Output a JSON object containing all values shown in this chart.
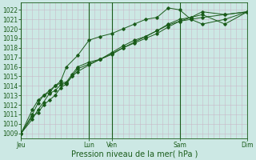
{
  "bg_color": "#cce8e4",
  "line_color": "#1a5c1a",
  "grid_color": "#c8b8c8",
  "xlabel": "Pression niveau de la mer( hPa )",
  "yticks": [
    1009,
    1010,
    1011,
    1012,
    1013,
    1014,
    1015,
    1016,
    1017,
    1018,
    1019,
    1020,
    1021,
    1022
  ],
  "ylim": [
    1008.5,
    1022.8
  ],
  "day_labels": [
    "Jeu",
    "Lun",
    "Ven",
    "Sam",
    "Dim"
  ],
  "day_positions": [
    0,
    72,
    96,
    168,
    240
  ],
  "total_hours": 240,
  "series": [
    [
      1009.0,
      1010.5,
      1011.5,
      1012.3,
      1013.2,
      1013.5,
      1014.1,
      1014.3,
      1015.0,
      1015.5,
      1016.2,
      1016.8,
      1017.3,
      1018.0,
      1018.5,
      1019.0,
      1019.5,
      1020.2,
      1020.8,
      1021.2,
      1021.5,
      1020.5,
      1021.8
    ],
    [
      1009.0,
      1011.0,
      1012.2,
      1013.0,
      1013.3,
      1014.0,
      1014.3,
      1014.4,
      1015.2,
      1016.0,
      1016.5,
      1016.8,
      1017.5,
      1018.2,
      1018.8,
      1019.2,
      1019.8,
      1020.5,
      1021.0,
      1021.2,
      1021.8,
      1021.5,
      1021.8
    ],
    [
      1009.0,
      1011.5,
      1012.5,
      1013.0,
      1013.5,
      1014.0,
      1014.5,
      1016.0,
      1017.2,
      1018.8,
      1019.2,
      1019.5,
      1020.0,
      1020.5,
      1021.0,
      1021.2,
      1022.2,
      1022.0,
      1021.0,
      1020.5,
      1021.0,
      1021.8
    ],
    [
      1009.0,
      1010.8,
      1011.2,
      1012.0,
      1012.5,
      1013.0,
      1013.8,
      1014.2,
      1015.0,
      1015.8,
      1016.3,
      1016.8,
      1017.4,
      1018.0,
      1018.6,
      1019.2,
      1019.8,
      1020.4,
      1020.8,
      1021.0,
      1021.2,
      1021.5,
      1021.8
    ]
  ],
  "series_x": [
    [
      0,
      12,
      18,
      24,
      30,
      36,
      42,
      48,
      54,
      60,
      72,
      84,
      96,
      108,
      120,
      132,
      144,
      156,
      168,
      180,
      192,
      216,
      240
    ],
    [
      0,
      12,
      18,
      24,
      30,
      36,
      42,
      48,
      54,
      60,
      72,
      84,
      96,
      108,
      120,
      132,
      144,
      156,
      168,
      180,
      192,
      216,
      240
    ],
    [
      0,
      12,
      18,
      24,
      30,
      36,
      42,
      48,
      60,
      72,
      84,
      96,
      108,
      120,
      132,
      144,
      156,
      168,
      180,
      192,
      216,
      240
    ],
    [
      0,
      12,
      18,
      24,
      30,
      36,
      42,
      48,
      54,
      60,
      72,
      84,
      96,
      108,
      120,
      132,
      144,
      156,
      168,
      180,
      192,
      216,
      240
    ]
  ],
  "title_fontsize": 7.0,
  "tick_fontsize": 5.5
}
